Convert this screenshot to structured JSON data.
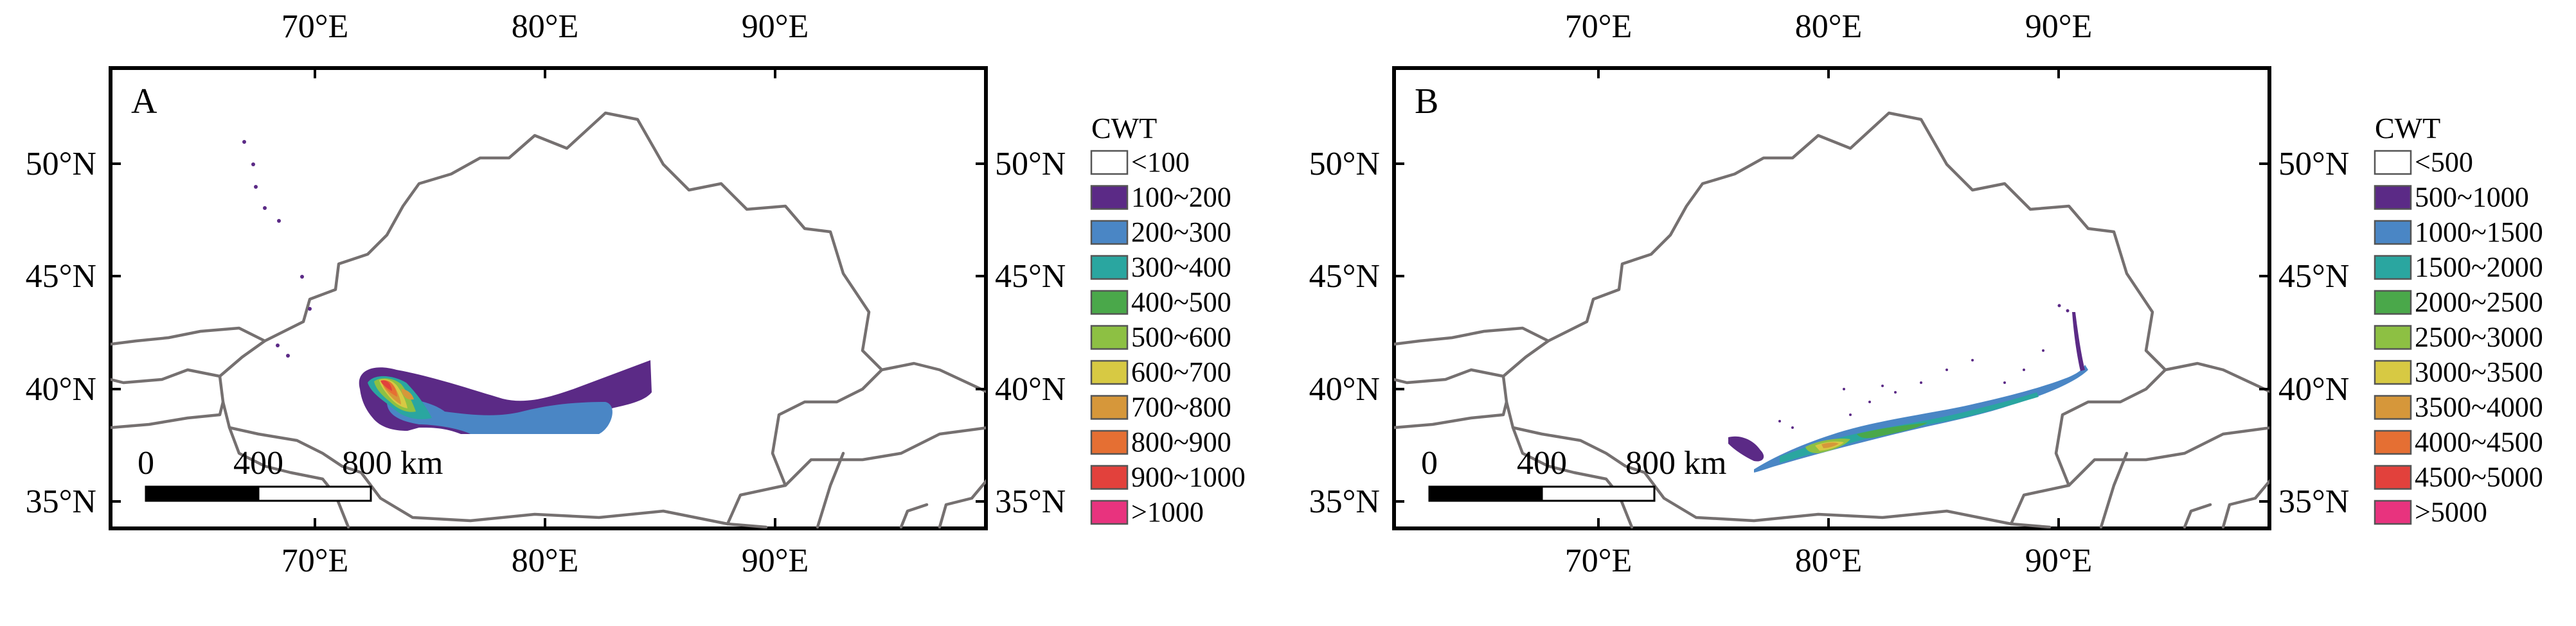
{
  "panels": [
    {
      "id": "A",
      "letter": "A",
      "lon_ticks": [
        "70°E",
        "80°E",
        "90°E"
      ],
      "lat_ticks": [
        "35°N",
        "40°N",
        "45°N",
        "50°N"
      ],
      "scale": {
        "start": "0",
        "mid": "400",
        "end": "800 km"
      },
      "legend": {
        "title": "CWT",
        "items": [
          {
            "label": "<100",
            "color": "#ffffff"
          },
          {
            "label": "100~200",
            "color": "#5b2a86"
          },
          {
            "label": "200~300",
            "color": "#4a86c5"
          },
          {
            "label": "300~400",
            "color": "#2aa6a0"
          },
          {
            "label": "400~500",
            "color": "#4aa84a"
          },
          {
            "label": "500~600",
            "color": "#8dc043"
          },
          {
            "label": "600~700",
            "color": "#d7c943"
          },
          {
            "label": "700~800",
            "color": "#d6973a"
          },
          {
            "label": "800~900",
            "color": "#e56f33"
          },
          {
            "label": "900~1000",
            "color": "#e2413c"
          },
          {
            "label": ">1000",
            "color": "#e8337e"
          }
        ]
      }
    },
    {
      "id": "B",
      "letter": "B",
      "lon_ticks": [
        "70°E",
        "80°E",
        "90°E"
      ],
      "lat_ticks": [
        "35°N",
        "40°N",
        "45°N",
        "50°N"
      ],
      "scale": {
        "start": "0",
        "mid": "400",
        "end": "800 km"
      },
      "legend": {
        "title": "CWT",
        "items": [
          {
            "label": "<500",
            "color": "#ffffff"
          },
          {
            "label": "500~1000",
            "color": "#5b2a86"
          },
          {
            "label": "1000~1500",
            "color": "#4a86c5"
          },
          {
            "label": "1500~2000",
            "color": "#2aa6a0"
          },
          {
            "label": "2000~2500",
            "color": "#4aa84a"
          },
          {
            "label": "2500~3000",
            "color": "#8dc043"
          },
          {
            "label": "3000~3500",
            "color": "#d7c943"
          },
          {
            "label": "3500~4000",
            "color": "#d6973a"
          },
          {
            "label": "4000~4500",
            "color": "#e56f33"
          },
          {
            "label": "4500~5000",
            "color": "#e2413c"
          },
          {
            "label": ">5000",
            "color": "#e8337e"
          }
        ]
      }
    }
  ]
}
